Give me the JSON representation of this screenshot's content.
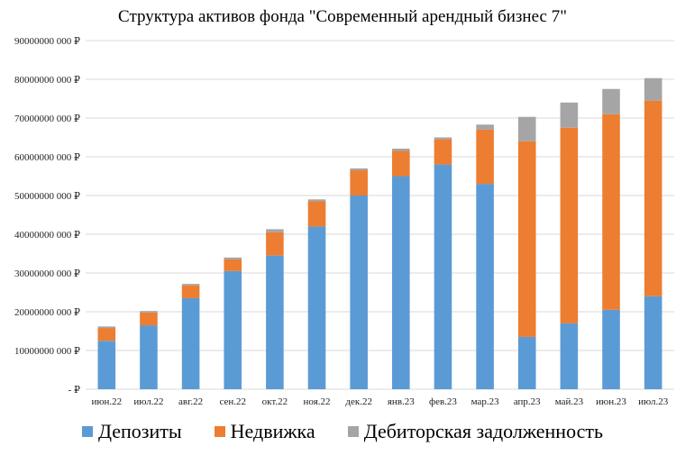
{
  "chart_data": {
    "type": "bar",
    "stacked": true,
    "title": "Структура активов фонда \"Современный арендный бизнес 7\"",
    "xlabel": "",
    "ylabel": "",
    "categories": [
      "июн.22",
      "июл.22",
      "авг.22",
      "сен.22",
      "окт.22",
      "ноя.22",
      "дек.22",
      "янв.23",
      "фев.23",
      "мар.23",
      "апр.23",
      "май.23",
      "июн.23",
      "июл.23"
    ],
    "ylim": [
      0,
      90000000
    ],
    "y_ticks": [
      0,
      10000000,
      20000000,
      30000000,
      40000000,
      50000000,
      60000000,
      70000000,
      80000000,
      90000000
    ],
    "y_tick_labels": [
      "-  ₽",
      "10000000 000 ₽",
      "20000000 000 ₽",
      "30000000 000 ₽",
      "40000000 000 ₽",
      "50000000 000 ₽",
      "60000000 000 ₽",
      "70000000 000 ₽",
      "80000000 000 ₽",
      "90000000 000 ₽"
    ],
    "grid": true,
    "legend_position": "bottom",
    "series": [
      {
        "name": "Депозиты",
        "color": "#5B9BD5",
        "values": [
          12500000,
          16500000,
          23500000,
          30500000,
          34500000,
          42000000,
          50000000,
          55000000,
          58000000,
          53000000,
          13500000,
          17000000,
          20500000,
          24000000
        ]
      },
      {
        "name": "Недвижка",
        "color": "#ED7D31",
        "values": [
          3300000,
          3300000,
          3300000,
          3000000,
          6000000,
          6500000,
          6500000,
          6500000,
          6500000,
          14000000,
          50500000,
          50500000,
          50500000,
          50500000
        ]
      },
      {
        "name": "Дебиторская задолженность",
        "color": "#A5A5A5",
        "values": [
          400000,
          400000,
          400000,
          500000,
          800000,
          500000,
          500000,
          600000,
          500000,
          1300000,
          6300000,
          6500000,
          6500000,
          5800000
        ]
      }
    ]
  }
}
